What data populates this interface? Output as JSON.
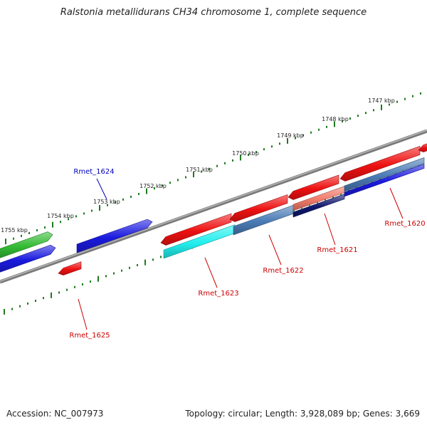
{
  "title": "Ralstonia metallidurans CH34 chromosome 1, complete sequence",
  "footer": {
    "accession": "Accession: NC_007973",
    "summary": "Topology: circular; Length: 3,928,089 bp; Genes: 3,669"
  },
  "tick_labels": [
    "1747 kbp",
    "1748 kbp",
    "1749 kbp",
    "1750 kbp",
    "1751 kbp",
    "1752 kbp",
    "1753 kbp",
    "1754 kbp",
    "1755 kbp"
  ],
  "gene_labels": [
    {
      "text": "Rmet_1620",
      "color": "#cc0000"
    },
    {
      "text": "Rmet_1621",
      "color": "#cc0000"
    },
    {
      "text": "Rmet_1622",
      "color": "#cc0000"
    },
    {
      "text": "Rmet_1623",
      "color": "#cc0000"
    },
    {
      "text": "Rmet_1624",
      "color": "#0000bb"
    },
    {
      "text": "Rmet_1625",
      "color": "#cc0000"
    }
  ],
  "colors": {
    "forward_cds": "#ee1111",
    "reverse_cds": "#1a1adf",
    "rna": "#33bb33",
    "cog_cyan": "#22eeee",
    "cog_steel": "#4a7bb5",
    "cog_salmon": "#f07a6a",
    "cog_navy": "#10186e",
    "backbone": "#7a7a7a",
    "ticks": "#1f7a1f"
  }
}
